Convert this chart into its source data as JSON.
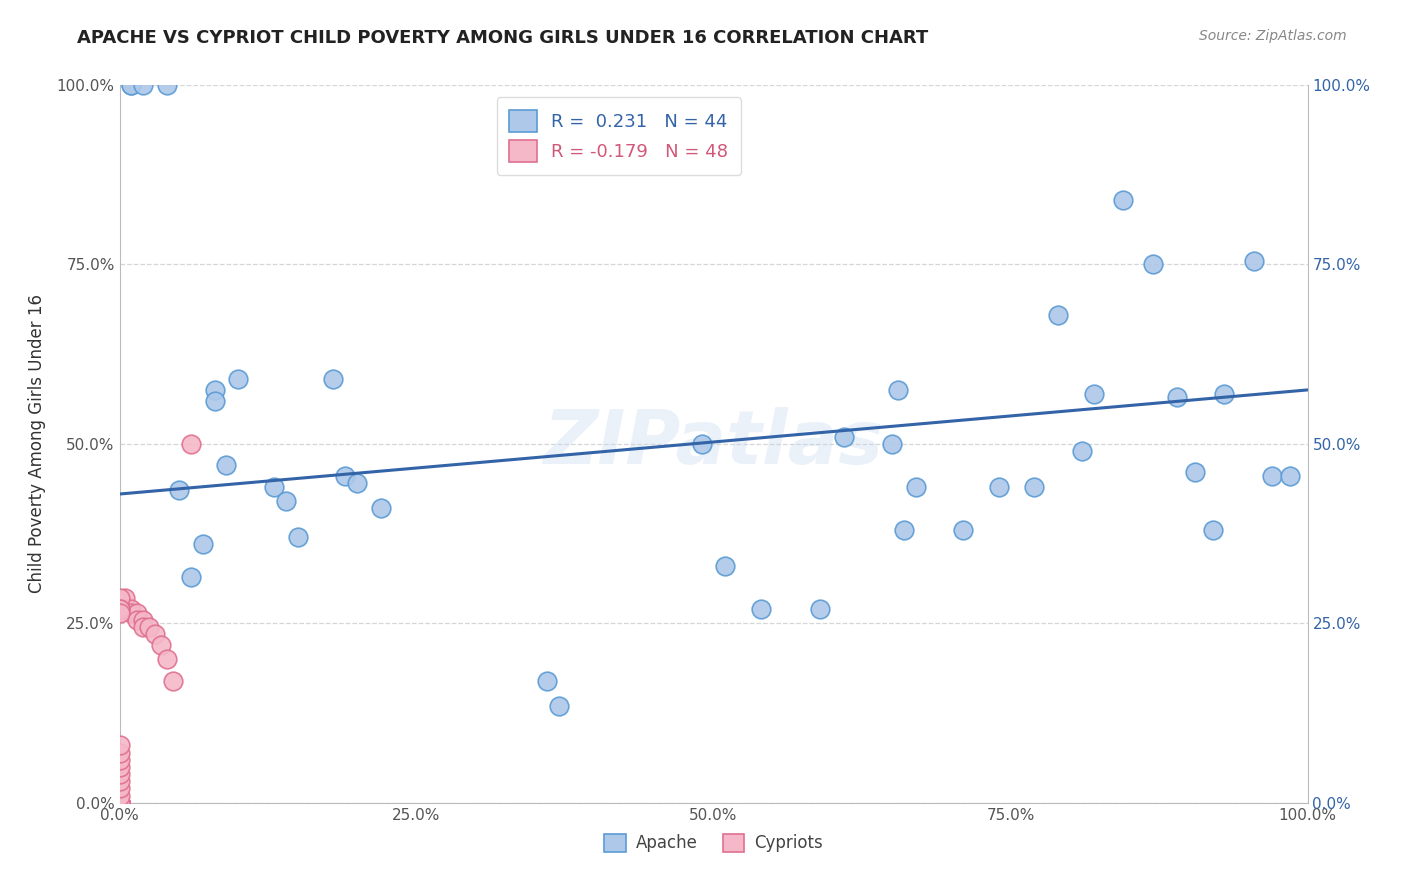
{
  "title": "APACHE VS CYPRIOT CHILD POVERTY AMONG GIRLS UNDER 16 CORRELATION CHART",
  "source": "Source: ZipAtlas.com",
  "ylabel": "Child Poverty Among Girls Under 16",
  "watermark": "ZIPatlas",
  "apache_R": 0.231,
  "apache_N": 44,
  "cypriot_R": -0.179,
  "cypriot_N": 48,
  "apache_color": "#adc8e8",
  "cypriot_color": "#f5b8c8",
  "apache_edge_color": "#5b9bd5",
  "cypriot_edge_color": "#e07090",
  "trendline_color": "#3464a8",
  "cypriot_trendline_color": "#d05878",
  "background_color": "#ffffff",
  "grid_color": "#cccccc",
  "apache_x": [
    0.01,
    0.01,
    0.02,
    0.04,
    0.05,
    0.06,
    0.07,
    0.08,
    0.08,
    0.09,
    0.1,
    0.13,
    0.14,
    0.15,
    0.18,
    0.19,
    0.2,
    0.22,
    0.36,
    0.37,
    0.49,
    0.51,
    0.54,
    0.59,
    0.61,
    0.65,
    0.655,
    0.66,
    0.67,
    0.71,
    0.74,
    0.77,
    0.79,
    0.81,
    0.82,
    0.845,
    0.87,
    0.89,
    0.905,
    0.92,
    0.93,
    0.955,
    0.97,
    0.985
  ],
  "apache_y": [
    1.0,
    1.0,
    1.0,
    1.0,
    0.435,
    0.315,
    0.36,
    0.575,
    0.56,
    0.47,
    0.59,
    0.44,
    0.42,
    0.37,
    0.59,
    0.455,
    0.445,
    0.41,
    0.17,
    0.135,
    0.5,
    0.33,
    0.27,
    0.27,
    0.51,
    0.5,
    0.575,
    0.38,
    0.44,
    0.38,
    0.44,
    0.44,
    0.68,
    0.49,
    0.57,
    0.84,
    0.75,
    0.565,
    0.46,
    0.38,
    0.57,
    0.755,
    0.455,
    0.455
  ],
  "cypriot_x": [
    0.0,
    0.0,
    0.0,
    0.0,
    0.0,
    0.0,
    0.0,
    0.0,
    0.0,
    0.0,
    0.0,
    0.0,
    0.0,
    0.0,
    0.0,
    0.0,
    0.0,
    0.0,
    0.0,
    0.0,
    0.0,
    0.0,
    0.0,
    0.0,
    0.0,
    0.0,
    0.0,
    0.0,
    0.0,
    0.0,
    0.005,
    0.005,
    0.01,
    0.01,
    0.015,
    0.015,
    0.02,
    0.02,
    0.025,
    0.03,
    0.035,
    0.04,
    0.045,
    0.06,
    0.0,
    0.0,
    0.0,
    0.0
  ],
  "cypriot_y": [
    0.0,
    0.0,
    0.0,
    0.0,
    0.0,
    0.0,
    0.0,
    0.0,
    0.0,
    0.0,
    0.0,
    0.0,
    0.0,
    0.0,
    0.0,
    0.0,
    0.0,
    0.0,
    0.0,
    0.0,
    0.01,
    0.02,
    0.03,
    0.04,
    0.05,
    0.06,
    0.07,
    0.08,
    0.28,
    0.28,
    0.285,
    0.27,
    0.27,
    0.265,
    0.265,
    0.255,
    0.255,
    0.245,
    0.245,
    0.235,
    0.22,
    0.2,
    0.17,
    0.5,
    0.285,
    0.27,
    0.27,
    0.265
  ],
  "apache_trend_x0": 0.0,
  "apache_trend_x1": 1.0,
  "apache_trend_y0": 0.43,
  "apache_trend_y1": 0.575,
  "xlim": [
    0.0,
    1.0
  ],
  "ylim": [
    0.0,
    1.0
  ],
  "xticks": [
    0.0,
    0.25,
    0.5,
    0.75,
    1.0
  ],
  "xticklabels": [
    "0.0%",
    "25.0%",
    "50.0%",
    "75.0%",
    "100.0%"
  ],
  "yticks": [
    0.0,
    0.25,
    0.5,
    0.75,
    1.0
  ],
  "yticklabels_left": [
    "0.0%",
    "25.0%",
    "50.0%",
    "75.0%",
    "100.0%"
  ],
  "yticklabels_right": [
    "0.0%",
    "25.0%",
    "50.0%",
    "75.0%",
    "100.0%"
  ],
  "marker_size": 180,
  "title_fontsize": 13,
  "tick_fontsize": 11,
  "legend_fontsize": 13,
  "ylabel_fontsize": 12
}
